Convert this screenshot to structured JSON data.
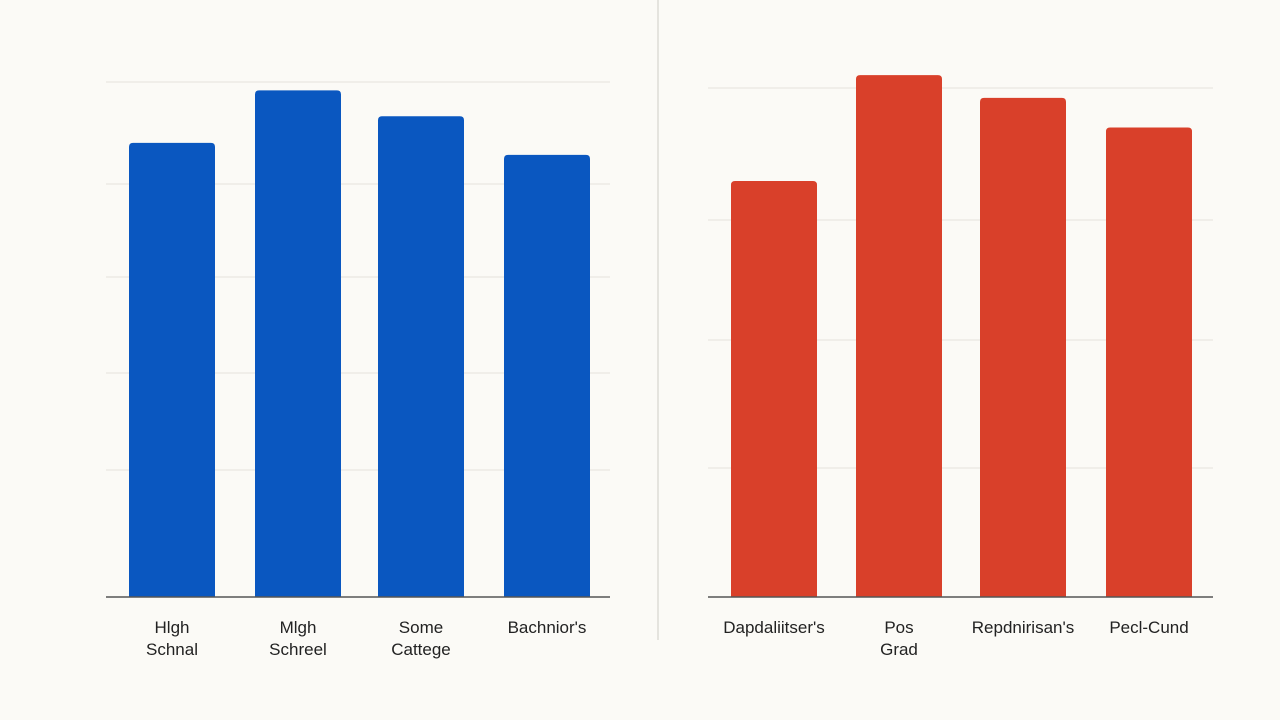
{
  "colors": {
    "background": "#fbfaf6",
    "left_series": "#0a57c0",
    "right_series": "#d9402a",
    "grid": "#e9e7e1",
    "axis": "#555555",
    "text": "#222222"
  },
  "right_title_fragment": "",
  "chart_data": [
    {
      "type": "bar",
      "title": "",
      "xlabel": "",
      "ylabel": "",
      "categories": [
        [
          "Hlgh",
          "Schnal"
        ],
        [
          "Mlgh",
          "Schreel"
        ],
        [
          "Some",
          "Cattege"
        ],
        [
          "Bachnior's"
        ]
      ],
      "values": [
        49.3,
        55,
        52.2,
        48
      ],
      "ylim": [
        0,
        57
      ],
      "grid": true,
      "color": "#0a57c0"
    },
    {
      "type": "bar",
      "title": "",
      "xlabel": "",
      "ylabel": "",
      "categories": [
        [
          "Dapdaliitser's"
        ],
        [
          "Pos",
          "Grad"
        ],
        [
          "Repdnirisan's"
        ],
        [
          "Pecl-Cund"
        ]
      ],
      "values": [
        36.5,
        45.8,
        43.8,
        41.2
      ],
      "ylim": [
        0,
        48
      ],
      "grid": true,
      "color": "#d9402a"
    }
  ]
}
